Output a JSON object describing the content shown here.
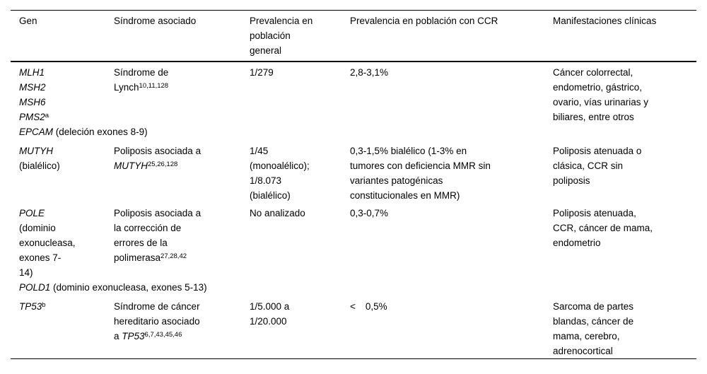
{
  "page": {
    "background_color": "#ffffff",
    "text_color": "#000000",
    "rule_color": "#000000"
  },
  "table": {
    "columns": [
      {
        "key": "gen",
        "lines": [
          [
            {
              "t": "Gen"
            }
          ]
        ]
      },
      {
        "key": "sindrome",
        "lines": [
          [
            {
              "t": "Síndrome asociado"
            }
          ]
        ]
      },
      {
        "key": "prev-general",
        "lines": [
          [
            {
              "t": "Prevalencia en"
            }
          ],
          [
            {
              "t": "población"
            }
          ],
          [
            {
              "t": "general"
            }
          ]
        ]
      },
      {
        "key": "prev-ccr",
        "lines": [
          [
            {
              "t": "Prevalencia en población con CCR"
            }
          ]
        ]
      },
      {
        "key": "manifestaciones",
        "lines": [
          [
            {
              "t": "Manifestaciones clínicas"
            }
          ]
        ]
      }
    ],
    "rows": [
      {
        "cells": [
          {
            "lines": [
              [
                {
                  "t": "MLH1",
                  "i": true
                }
              ],
              [
                {
                  "t": "MSH2",
                  "i": true
                }
              ],
              [
                {
                  "t": "MSH6",
                  "i": true
                }
              ],
              [
                {
                  "t": "PMS2",
                  "i": true
                },
                {
                  "t": "a",
                  "sup": true
                }
              ]
            ]
          },
          {
            "lines": [
              [
                {
                  "t": "Síndrome de"
                }
              ],
              [
                {
                  "t": "Lynch"
                },
                {
                  "t": "10,11,128",
                  "sup": true
                }
              ]
            ]
          },
          {
            "lines": [
              [
                {
                  "t": "1/279"
                }
              ]
            ]
          },
          {
            "lines": [
              [
                {
                  "t": "2,8-3,1%"
                }
              ]
            ]
          },
          {
            "lines": [
              [
                {
                  "t": "Cáncer colorrectal,"
                }
              ],
              [
                {
                  "t": "endometrio, gástrico,"
                }
              ],
              [
                {
                  "t": "ovario, vías urinarias y"
                }
              ],
              [
                {
                  "t": "biliares, entre otros"
                }
              ]
            ]
          }
        ],
        "span": [
          {
            "t": "EPCAM",
            "i": true
          },
          {
            "t": " (deleción exones 8-9)"
          }
        ]
      },
      {
        "cells": [
          {
            "lines": [
              [
                {
                  "t": "MUTYH",
                  "i": true
                }
              ],
              [
                {
                  "t": "(bialélico)"
                }
              ]
            ]
          },
          {
            "lines": [
              [
                {
                  "t": "Poliposis asociada a"
                }
              ],
              [
                {
                  "t": "MUTYH",
                  "i": true
                },
                {
                  "t": "25,26,128",
                  "sup": true
                }
              ]
            ]
          },
          {
            "lines": [
              [
                {
                  "t": "1/45"
                }
              ],
              [
                {
                  "t": "(monoalélico);"
                }
              ],
              [
                {
                  "t": "1/8.073"
                }
              ],
              [
                {
                  "t": "(bialélico)"
                }
              ]
            ]
          },
          {
            "lines": [
              [
                {
                  "t": "0,3-1,5% bialélico (1-3% en"
                }
              ],
              [
                {
                  "t": "tumores con deficiencia MMR sin"
                }
              ],
              [
                {
                  "t": "variantes patogénicas"
                }
              ],
              [
                {
                  "t": "constitucionales en MMR)"
                }
              ]
            ]
          },
          {
            "lines": [
              [
                {
                  "t": "Poliposis atenuada o"
                }
              ],
              [
                {
                  "t": "clásica, CCR sin"
                }
              ],
              [
                {
                  "t": "poliposis"
                }
              ]
            ]
          }
        ]
      },
      {
        "cells": [
          {
            "lines": [
              [
                {
                  "t": "POLE",
                  "i": true
                }
              ],
              [
                {
                  "t": "(dominio"
                }
              ],
              [
                {
                  "t": "exonucleasa,"
                }
              ],
              [
                {
                  "t": "exones 7-"
                }
              ],
              [
                {
                  "t": "14)"
                }
              ]
            ]
          },
          {
            "lines": [
              [
                {
                  "t": "Poliposis asociada a"
                }
              ],
              [
                {
                  "t": "la corrección de"
                }
              ],
              [
                {
                  "t": "errores de la"
                }
              ],
              [
                {
                  "t": "polimerasa"
                },
                {
                  "t": "27,28,42",
                  "sup": true
                }
              ]
            ]
          },
          {
            "lines": [
              [
                {
                  "t": "No analizado"
                }
              ]
            ]
          },
          {
            "lines": [
              [
                {
                  "t": "0,3-0,7%"
                }
              ]
            ]
          },
          {
            "lines": [
              [
                {
                  "t": "Poliposis atenuada,"
                }
              ],
              [
                {
                  "t": "CCR, cáncer de mama,"
                }
              ],
              [
                {
                  "t": "endometrio"
                }
              ]
            ]
          }
        ],
        "span": [
          {
            "t": "POLD1",
            "i": true
          },
          {
            "t": " (dominio exonucleasa, exones 5-13)"
          }
        ]
      },
      {
        "cells": [
          {
            "lines": [
              [
                {
                  "t": "TP53",
                  "i": true
                },
                {
                  "t": "b",
                  "sup": true
                }
              ]
            ]
          },
          {
            "lines": [
              [
                {
                  "t": "Síndrome de cáncer"
                }
              ],
              [
                {
                  "t": "hereditario asociado"
                }
              ],
              [
                {
                  "t": "a "
                },
                {
                  "t": "TP53",
                  "i": true
                },
                {
                  "t": "6,7,43,45,46",
                  "sup": true
                }
              ]
            ]
          },
          {
            "lines": [
              [
                {
                  "t": "1/5.000 a"
                }
              ],
              [
                {
                  "t": "1/20.000"
                }
              ]
            ]
          },
          {
            "lines": [
              [
                {
                  "t": "<"
                },
                {
                  "t": "0,5%",
                  "gap": true
                }
              ]
            ]
          },
          {
            "lines": [
              [
                {
                  "t": "Sarcoma de partes"
                }
              ],
              [
                {
                  "t": "blandas, cáncer de"
                }
              ],
              [
                {
                  "t": "mama, cerebro,"
                }
              ],
              [
                {
                  "t": "adrenocortical"
                }
              ]
            ]
          }
        ]
      }
    ]
  }
}
